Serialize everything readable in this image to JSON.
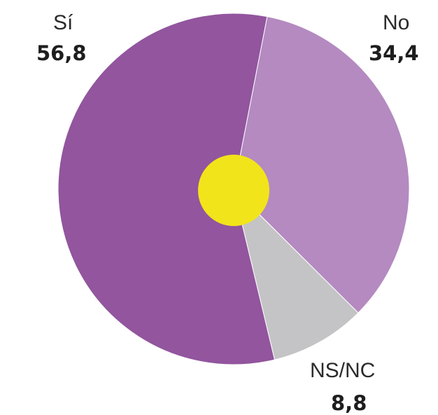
{
  "chart_data": {
    "type": "pie",
    "categories": [
      "Sí",
      "No",
      "NS/NC"
    ],
    "values": [
      56.8,
      34.4,
      8.8
    ],
    "value_labels": [
      "56,8",
      "34,4",
      "8,8"
    ],
    "colors": [
      "#92559e",
      "#b48ac0",
      "#c4c4c6"
    ],
    "center_dot_color": "#f2e41a",
    "legend": "none",
    "start": "top, clockwise order: No, NS/NC, Sí"
  }
}
